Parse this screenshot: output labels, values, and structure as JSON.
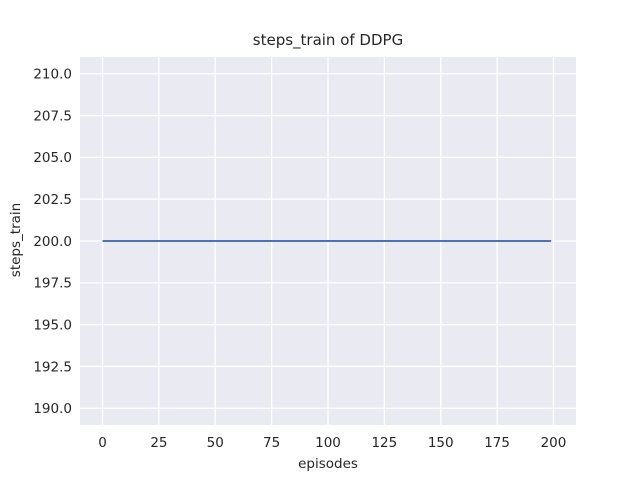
{
  "chart_data": {
    "type": "line",
    "title": "steps_train of DDPG",
    "xlabel": "episodes",
    "ylabel": "steps_train",
    "x_ticks": [
      0,
      25,
      50,
      75,
      100,
      125,
      150,
      175,
      200
    ],
    "x_tick_labels": [
      "0",
      "25",
      "50",
      "75",
      "100",
      "125",
      "150",
      "175",
      "200"
    ],
    "y_ticks": [
      190.0,
      192.5,
      195.0,
      197.5,
      200.0,
      202.5,
      205.0,
      207.5,
      210.0
    ],
    "y_tick_labels": [
      "190.0",
      "192.5",
      "195.0",
      "197.5",
      "200.0",
      "202.5",
      "205.0",
      "207.5",
      "210.0"
    ],
    "xlim": [
      -10,
      210
    ],
    "ylim": [
      189,
      211
    ],
    "grid": true,
    "legend": false,
    "series": [
      {
        "name": "steps_train",
        "color": "#4C72B0",
        "x": [
          0,
          199
        ],
        "y": [
          200,
          200
        ],
        "description": "constant value 200 across all training episodes"
      }
    ],
    "colors": {
      "figure_background": "#FFFFFF",
      "plot_background": "#EAEAF2",
      "grid": "#FFFFFF",
      "text": "#262626"
    }
  }
}
